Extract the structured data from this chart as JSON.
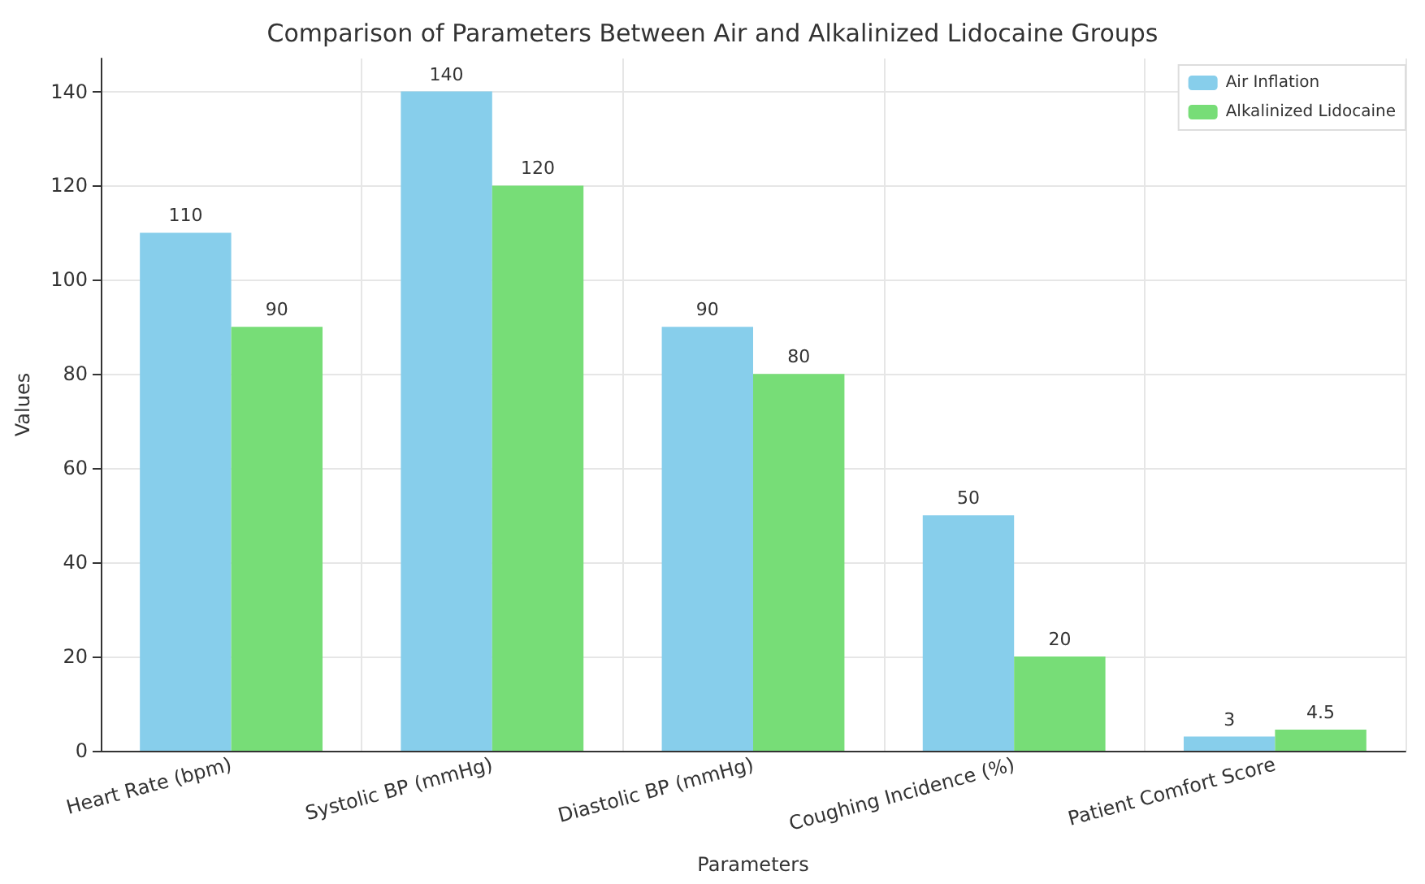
{
  "chart_data": {
    "type": "bar",
    "title": "Comparison of Parameters Between Air and Alkalinized Lidocaine Groups",
    "xlabel": "Parameters",
    "ylabel": "Values",
    "categories": [
      "Heart Rate (bpm)",
      "Systolic BP (mmHg)",
      "Diastolic BP (mmHg)",
      "Coughing Incidence (%)",
      "Patient Comfort Score"
    ],
    "series": [
      {
        "name": "Air Inflation",
        "color": "#87ceeb",
        "values": [
          110,
          140,
          90,
          50,
          3
        ]
      },
      {
        "name": "Alkalinized Lidocaine",
        "color": "#77dd77",
        "values": [
          90,
          120,
          80,
          20,
          4.5
        ]
      }
    ],
    "ylim": [
      0,
      147
    ],
    "yticks": [
      0,
      20,
      40,
      60,
      80,
      100,
      120,
      140
    ],
    "grid": true,
    "legend": "top right",
    "data_labels": true
  }
}
